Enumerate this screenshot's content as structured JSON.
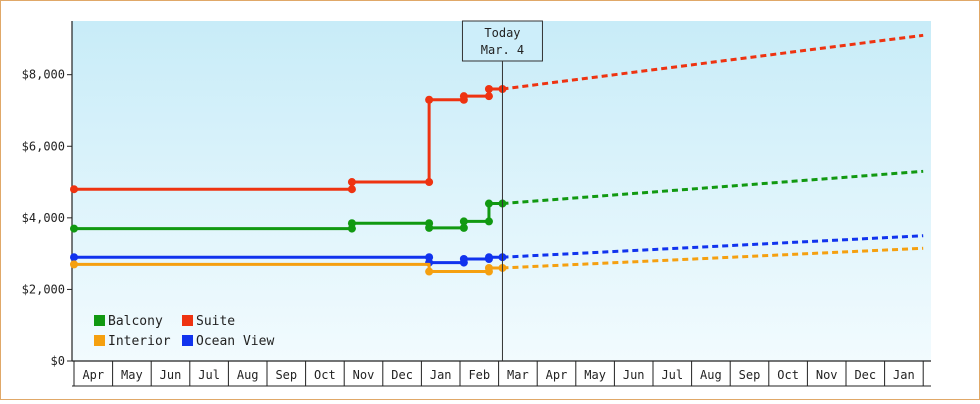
{
  "chart_data": {
    "type": "line",
    "title": "",
    "xlabel": "",
    "ylabel": "",
    "ylim": [
      0,
      9500
    ],
    "y_ticks": [
      {
        "value": 0,
        "label": "$0"
      },
      {
        "value": 2000,
        "label": "$2,000"
      },
      {
        "value": 4000,
        "label": "$4,000"
      },
      {
        "value": 6000,
        "label": "$6,000"
      },
      {
        "value": 8000,
        "label": "$8,000"
      }
    ],
    "x_months": [
      "Apr",
      "May",
      "Jun",
      "Jul",
      "Aug",
      "Sep",
      "Oct",
      "Nov",
      "Dec",
      "Jan",
      "Feb",
      "Mar",
      "Apr",
      "May",
      "Jun",
      "Jul",
      "Aug",
      "Sep",
      "Oct",
      "Nov",
      "Dec",
      "Jan"
    ],
    "today": {
      "line1": "Today",
      "line2": "Mar. 4",
      "x": 11.1
    },
    "legend": {
      "placement": "bottom-left",
      "items": [
        {
          "label": "Balcony",
          "color": "#119911"
        },
        {
          "label": "Suite",
          "color": "#ee3311"
        },
        {
          "label": "Interior",
          "color": "#f5a010"
        },
        {
          "label": "Ocean View",
          "color": "#1133ee"
        }
      ]
    },
    "series": [
      {
        "name": "Suite",
        "color": "#ee3311",
        "history": [
          [
            0,
            4800
          ],
          [
            7.2,
            4800
          ],
          [
            7.2,
            5000
          ],
          [
            9.2,
            5000
          ],
          [
            9.2,
            7300
          ],
          [
            10.1,
            7300
          ],
          [
            10.1,
            7400
          ],
          [
            10.75,
            7400
          ],
          [
            10.75,
            7600
          ],
          [
            11.1,
            7600
          ]
        ],
        "markers": [
          [
            0,
            4800
          ],
          [
            7.2,
            4800
          ],
          [
            7.2,
            5000
          ],
          [
            9.2,
            5000
          ],
          [
            9.2,
            7300
          ],
          [
            10.1,
            7300
          ],
          [
            10.1,
            7400
          ],
          [
            10.75,
            7400
          ],
          [
            10.75,
            7600
          ],
          [
            11.1,
            7600
          ]
        ],
        "forecast": [
          [
            11.1,
            7600
          ],
          [
            22,
            9100
          ]
        ]
      },
      {
        "name": "Balcony",
        "color": "#119911",
        "history": [
          [
            0,
            3700
          ],
          [
            7.2,
            3700
          ],
          [
            7.2,
            3850
          ],
          [
            9.2,
            3850
          ],
          [
            9.2,
            3720
          ],
          [
            10.1,
            3720
          ],
          [
            10.1,
            3900
          ],
          [
            10.75,
            3900
          ],
          [
            10.75,
            4400
          ],
          [
            11.1,
            4400
          ]
        ],
        "markers": [
          [
            0,
            3700
          ],
          [
            7.2,
            3700
          ],
          [
            7.2,
            3850
          ],
          [
            9.2,
            3850
          ],
          [
            9.2,
            3720
          ],
          [
            10.1,
            3720
          ],
          [
            10.1,
            3900
          ],
          [
            10.75,
            3900
          ],
          [
            10.75,
            4400
          ],
          [
            11.1,
            4400
          ]
        ],
        "forecast": [
          [
            11.1,
            4400
          ],
          [
            22,
            5300
          ]
        ]
      },
      {
        "name": "Ocean View",
        "color": "#1133ee",
        "history": [
          [
            0,
            2900
          ],
          [
            9.2,
            2900
          ],
          [
            9.2,
            2750
          ],
          [
            10.1,
            2750
          ],
          [
            10.1,
            2850
          ],
          [
            10.75,
            2850
          ],
          [
            10.75,
            2900
          ],
          [
            11.1,
            2900
          ]
        ],
        "markers": [
          [
            0,
            2900
          ],
          [
            9.2,
            2900
          ],
          [
            9.2,
            2750
          ],
          [
            10.1,
            2750
          ],
          [
            10.1,
            2850
          ],
          [
            10.75,
            2850
          ],
          [
            10.75,
            2900
          ],
          [
            11.1,
            2900
          ]
        ],
        "forecast": [
          [
            11.1,
            2900
          ],
          [
            22,
            3500
          ]
        ]
      },
      {
        "name": "Interior",
        "color": "#f5a010",
        "history": [
          [
            0,
            2700
          ],
          [
            9.2,
            2700
          ],
          [
            9.2,
            2500
          ],
          [
            10.75,
            2500
          ],
          [
            10.75,
            2600
          ],
          [
            11.1,
            2600
          ]
        ],
        "markers": [
          [
            0,
            2700
          ],
          [
            9.2,
            2500
          ],
          [
            10.75,
            2500
          ],
          [
            10.75,
            2600
          ],
          [
            11.1,
            2600
          ]
        ],
        "forecast": [
          [
            11.1,
            2600
          ],
          [
            22,
            3150
          ]
        ]
      }
    ]
  }
}
